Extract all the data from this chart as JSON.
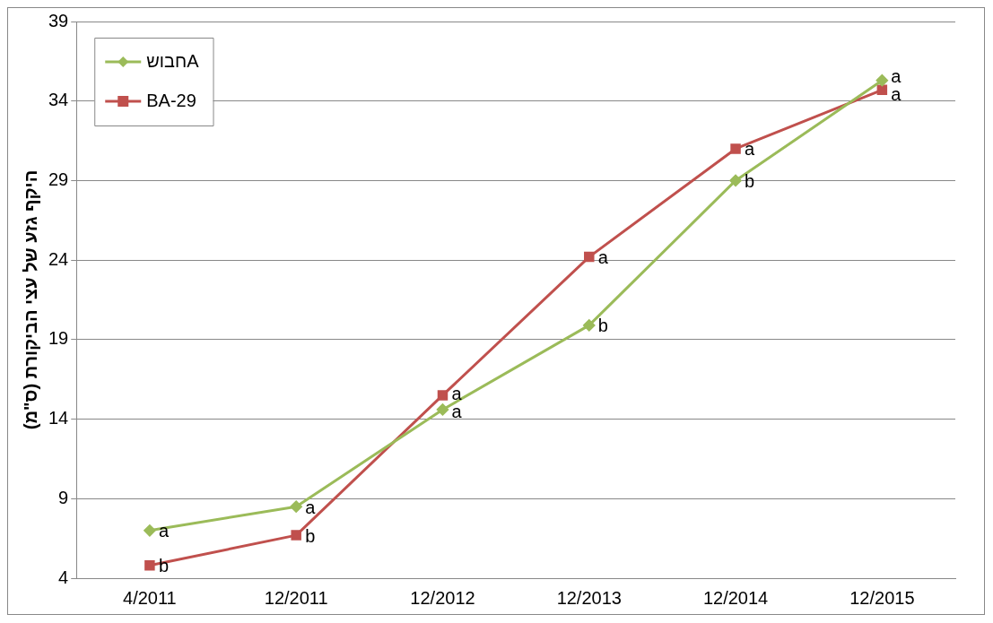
{
  "chart_data": {
    "type": "line",
    "ylabel": "היקף גזע של עצי הביקורת (ס\"מ)",
    "categories": [
      "4/2011",
      "12/2011",
      "12/2012",
      "12/2013",
      "12/2014",
      "12/2015"
    ],
    "series": [
      {
        "name": "חבושA",
        "color": "#9bbb59",
        "marker": "diamond",
        "values": [
          7.0,
          8.5,
          14.6,
          19.9,
          29.0,
          35.3
        ],
        "value_labels": [
          "a",
          "a",
          "a",
          "b",
          "b",
          "a"
        ]
      },
      {
        "name": "BA-29",
        "color": "#c0504d",
        "marker": "square",
        "values": [
          4.8,
          6.7,
          15.5,
          24.2,
          31.0,
          34.7
        ],
        "value_labels": [
          "b",
          "b",
          "a",
          "a",
          "a",
          "a"
        ]
      }
    ],
    "ylim": [
      4,
      39
    ],
    "yticks": [
      4,
      9,
      14,
      19,
      24,
      29,
      34,
      39
    ],
    "grid": "y",
    "legend": "top left"
  }
}
